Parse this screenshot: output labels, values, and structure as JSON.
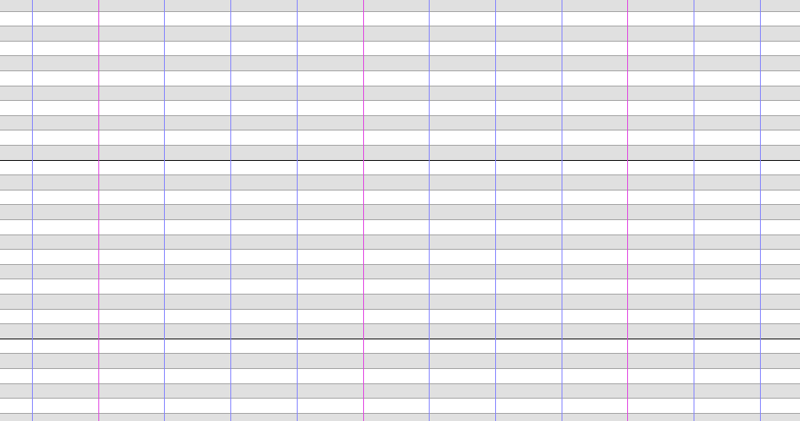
{
  "colors": {
    "background": "#ffffff",
    "shaded_row": "#e0e0e0",
    "row_divider": "#a0a0a0",
    "major_row_divider": "#000000",
    "minor_column_line": "#8080ff",
    "accent_column_line": "#e040e0"
  },
  "grid": {
    "row_count": 29,
    "column_line_count": 12,
    "shading_pattern": "alternating",
    "major_divider_rows": [
      10,
      22
    ],
    "accent_column_lines": [
      1,
      5,
      9
    ]
  }
}
